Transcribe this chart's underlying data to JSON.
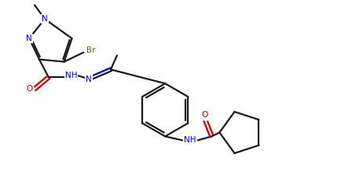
{
  "bg_color": "#ffffff",
  "line_color": "#1a1a1a",
  "atom_colors": {
    "N": "#0000cd",
    "O": "#cc0000",
    "Br": "#666600",
    "C": "#1a1a1a"
  },
  "figsize": [
    4.48,
    2.48
  ],
  "dpi": 100
}
